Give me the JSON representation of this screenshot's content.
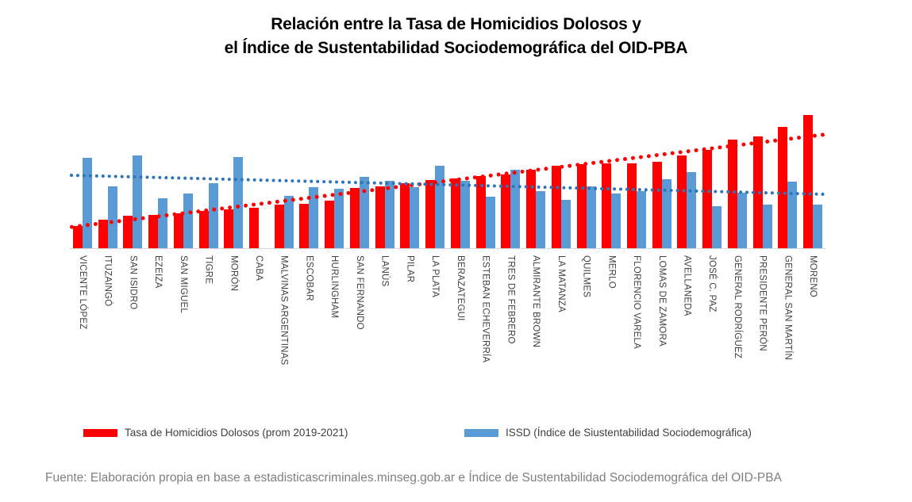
{
  "title": {
    "lines": [
      "Relación entre la Tasa de Homicidios Dolosos y",
      "el Índice de Sustentabilidad Sociodemográfica del OID-PBA"
    ]
  },
  "legend": {
    "items": [
      {
        "label": "Tasa de Homicidios Dolosos (prom 2019-2021)",
        "color": "#FF0000"
      },
      {
        "label": "ISSD (Índice de Siustentabilidad Sociodemográfica)",
        "color": "#5B9BD5"
      }
    ]
  },
  "footer": "Fuente: Elaboración propia en base a estadisticascriminales.minseg.gob.ar e Índice de Sustentabilidad Sociodemográfica del OID-PBA",
  "chart_data": {
    "type": "bar",
    "title": "Relación entre la Tasa de Homicidios Dolosos y el Índice de Sustentabilidad Sociodemográfica del OID-PBA",
    "grid": false,
    "legend_position": "bottom",
    "value_axis": {
      "visible": false,
      "note": "no value axis, ticks or gridlines shown; values are estimated relative heights (px-proportional units), baseline = 0"
    },
    "ylim": [
      0,
      183
    ],
    "categories": [
      "VICENTE LÓPEZ",
      "ITUZAINGÓ",
      "SAN ISIDRO",
      "EZEIZA",
      "SAN MIGUEL",
      "TIGRE",
      "MORÓN",
      "CABA",
      "MALVINAS ARGENTINAS",
      "ESCOBAR",
      "HURLINGHAM",
      "SAN FERNANDO",
      "LANÚS",
      "PILAR",
      "LA PLATA",
      "BERAZATEGUI",
      "ESTEBAN ECHEVERRÍA",
      "TRES DE FEBRERO",
      "ALMIRANTE BROWN",
      "LA MATANZA",
      "QUILMES",
      "MERLO",
      "FLORENCIO VARELA",
      "LOMAS DE ZAMORA",
      "AVELLANEDA",
      "JOSÉ C. PAZ",
      "GENERAL RODRÍGUEZ",
      "PRESIDENTE PERÓN",
      "GENERAL SAN MARTÍN",
      "MORENO"
    ],
    "series": [
      {
        "name": "Tasa de Homicidios Dolosos (prom 2019-2021)",
        "color": "#FF0000",
        "values": [
          28,
          36,
          41,
          42,
          44,
          47,
          49,
          51,
          55,
          56,
          60,
          76,
          78,
          82,
          86,
          88,
          91,
          93,
          99,
          104,
          106,
          107,
          107,
          109,
          117,
          124,
          137,
          141,
          153,
          168
        ]
      },
      {
        "name": "ISSD (Índice de Siustentabilidad Sociodemográfica)",
        "color": "#5B9BD5",
        "values": [
          114,
          78,
          117,
          63,
          69,
          82,
          115,
          null,
          66,
          77,
          75,
          90,
          85,
          77,
          104,
          85,
          65,
          99,
          72,
          61,
          78,
          69,
          72,
          87,
          96,
          53,
          70,
          55,
          84,
          55
        ]
      }
    ],
    "trendlines": [
      {
        "series": "Tasa de Homicidios Dolosos (prom 2019-2021)",
        "style": "dotted",
        "color": "#FF0000",
        "start_value": 27,
        "end_value": 144
      },
      {
        "series": "ISSD (Índice de Siustentabilidad Sociodemográfica)",
        "style": "dotted",
        "color": "#2E75B6",
        "start_value": 92,
        "end_value": 68
      }
    ]
  }
}
